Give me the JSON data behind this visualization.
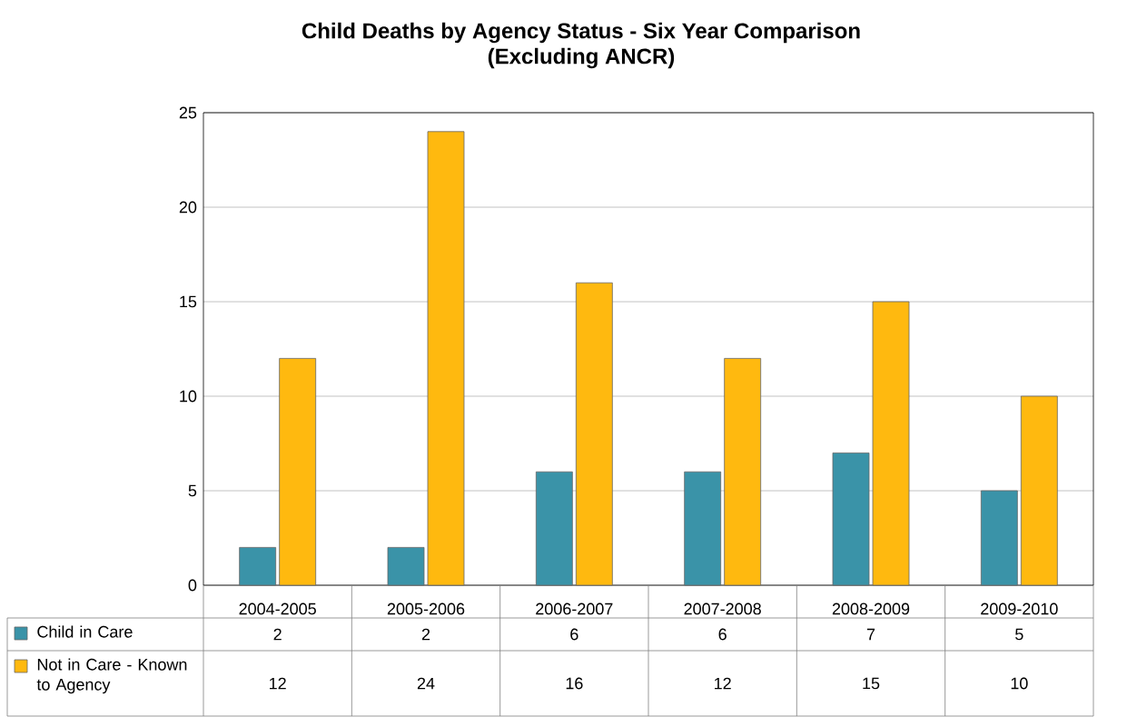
{
  "chart_data": {
    "type": "bar",
    "title": "Child Deaths by Agency Status - Six Year Comparison",
    "subtitle": "(Excluding ANCR)",
    "categories": [
      "2004-2005",
      "2005-2006",
      "2006-2007",
      "2007-2008",
      "2008-2009",
      "2009-2010"
    ],
    "series": [
      {
        "name": "Child in Care",
        "color": "#3a93a8",
        "values": [
          2,
          2,
          6,
          6,
          7,
          5
        ]
      },
      {
        "name": "Not in Care - Known to Agency",
        "color": "#ffb90f",
        "values": [
          12,
          24,
          16,
          12,
          15,
          10
        ]
      }
    ],
    "ylim": [
      0,
      25
    ],
    "yticks": [
      0,
      5,
      10,
      15,
      20,
      25
    ],
    "grid": "y",
    "data_labels": true,
    "legend": "bottom left"
  }
}
